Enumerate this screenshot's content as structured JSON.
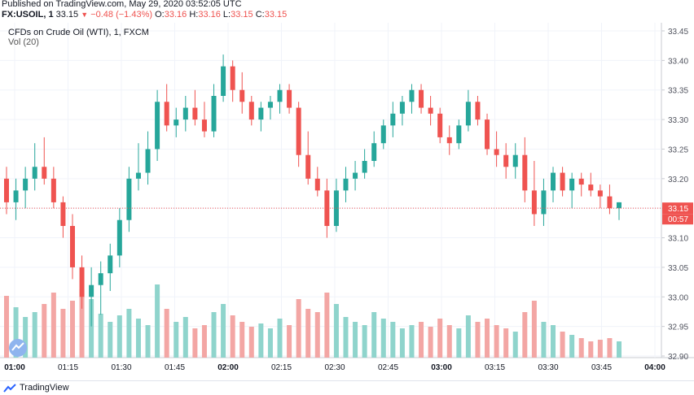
{
  "published": "Published on TradingView.com, May 29, 2020 03:52:05 UTC",
  "header": {
    "symbol": "FX:USOIL, 1",
    "last": "33.15",
    "change_arrow": "▼",
    "change": "−0.48 (−1.43%)",
    "o_label": "O:",
    "o": "33.16",
    "h_label": "H:",
    "h": "33.16",
    "l_label": "L:",
    "l": "33.15",
    "c_label": "C:",
    "c": "33.15"
  },
  "legend": {
    "title": "CFDs on Crude Oil (WTI), 1, FXCM",
    "volume": "Vol (20)"
  },
  "price_label": "33.15",
  "countdown": "00:57",
  "footer": {
    "brand": "TradingView"
  },
  "colors": {
    "up": "#26a69a",
    "down": "#ef5350",
    "vol_up": "#8fd4cc",
    "vol_down": "#f3a6a4",
    "price_line": "#ef5350"
  },
  "chart_data": {
    "type": "candlestick",
    "ylim": [
      32.9,
      33.45
    ],
    "y_ticks": [
      "33.45",
      "33.40",
      "33.35",
      "33.30",
      "33.25",
      "33.20",
      "33.15",
      "33.10",
      "33.05",
      "33.00",
      "32.95",
      "32.90"
    ],
    "x_ticks": [
      "01:00",
      "01:15",
      "01:30",
      "01:45",
      "02:00",
      "02:15",
      "02:30",
      "02:45",
      "03:00",
      "03:15",
      "03:30",
      "03:45",
      "04:00"
    ],
    "candles": [
      {
        "o": 33.2,
        "h": 33.22,
        "l": 33.14,
        "c": 33.16,
        "v": 0.38
      },
      {
        "o": 33.16,
        "h": 33.2,
        "l": 33.13,
        "c": 33.18,
        "v": 0.31
      },
      {
        "o": 33.18,
        "h": 33.22,
        "l": 33.15,
        "c": 33.2,
        "v": 0.25
      },
      {
        "o": 33.2,
        "h": 33.26,
        "l": 33.18,
        "c": 33.22,
        "v": 0.28
      },
      {
        "o": 33.22,
        "h": 33.27,
        "l": 33.19,
        "c": 33.2,
        "v": 0.33
      },
      {
        "o": 33.2,
        "h": 33.22,
        "l": 33.15,
        "c": 33.16,
        "v": 0.4
      },
      {
        "o": 33.16,
        "h": 33.17,
        "l": 33.1,
        "c": 33.12,
        "v": 0.3
      },
      {
        "o": 33.12,
        "h": 33.14,
        "l": 33.03,
        "c": 33.05,
        "v": 0.35
      },
      {
        "o": 33.05,
        "h": 33.07,
        "l": 32.98,
        "c": 33.0,
        "v": 0.42
      },
      {
        "o": 33.0,
        "h": 33.05,
        "l": 32.95,
        "c": 33.02,
        "v": 0.36
      },
      {
        "o": 33.02,
        "h": 33.06,
        "l": 32.97,
        "c": 33.04,
        "v": 0.27
      },
      {
        "o": 33.04,
        "h": 33.09,
        "l": 33.01,
        "c": 33.07,
        "v": 0.22
      },
      {
        "o": 33.07,
        "h": 33.15,
        "l": 33.05,
        "c": 33.13,
        "v": 0.26
      },
      {
        "o": 33.13,
        "h": 33.22,
        "l": 33.11,
        "c": 33.2,
        "v": 0.3
      },
      {
        "o": 33.2,
        "h": 33.26,
        "l": 33.18,
        "c": 33.21,
        "v": 0.24
      },
      {
        "o": 33.21,
        "h": 33.28,
        "l": 33.19,
        "c": 33.25,
        "v": 0.2
      },
      {
        "o": 33.25,
        "h": 33.35,
        "l": 33.23,
        "c": 33.33,
        "v": 0.45
      },
      {
        "o": 33.33,
        "h": 33.36,
        "l": 33.28,
        "c": 33.29,
        "v": 0.3
      },
      {
        "o": 33.29,
        "h": 33.32,
        "l": 33.27,
        "c": 33.3,
        "v": 0.22
      },
      {
        "o": 33.3,
        "h": 33.34,
        "l": 33.28,
        "c": 33.32,
        "v": 0.25
      },
      {
        "o": 33.32,
        "h": 33.35,
        "l": 33.29,
        "c": 33.3,
        "v": 0.18
      },
      {
        "o": 33.3,
        "h": 33.33,
        "l": 33.27,
        "c": 33.28,
        "v": 0.2
      },
      {
        "o": 33.28,
        "h": 33.36,
        "l": 33.27,
        "c": 33.34,
        "v": 0.28
      },
      {
        "o": 33.34,
        "h": 33.41,
        "l": 33.33,
        "c": 33.39,
        "v": 0.33
      },
      {
        "o": 33.39,
        "h": 33.4,
        "l": 33.33,
        "c": 33.35,
        "v": 0.26
      },
      {
        "o": 33.35,
        "h": 33.38,
        "l": 33.31,
        "c": 33.33,
        "v": 0.22
      },
      {
        "o": 33.33,
        "h": 33.34,
        "l": 33.29,
        "c": 33.3,
        "v": 0.19
      },
      {
        "o": 33.3,
        "h": 33.33,
        "l": 33.28,
        "c": 33.32,
        "v": 0.21
      },
      {
        "o": 33.32,
        "h": 33.34,
        "l": 33.3,
        "c": 33.33,
        "v": 0.18
      },
      {
        "o": 33.33,
        "h": 33.36,
        "l": 33.31,
        "c": 33.35,
        "v": 0.24
      },
      {
        "o": 33.35,
        "h": 33.36,
        "l": 33.31,
        "c": 33.32,
        "v": 0.2
      },
      {
        "o": 33.32,
        "h": 33.33,
        "l": 33.22,
        "c": 33.24,
        "v": 0.36
      },
      {
        "o": 33.24,
        "h": 33.28,
        "l": 33.19,
        "c": 33.2,
        "v": 0.3
      },
      {
        "o": 33.2,
        "h": 33.22,
        "l": 33.17,
        "c": 33.18,
        "v": 0.28
      },
      {
        "o": 33.18,
        "h": 33.2,
        "l": 33.1,
        "c": 33.12,
        "v": 0.4
      },
      {
        "o": 33.12,
        "h": 33.2,
        "l": 33.11,
        "c": 33.18,
        "v": 0.33
      },
      {
        "o": 33.18,
        "h": 33.22,
        "l": 33.16,
        "c": 33.2,
        "v": 0.25
      },
      {
        "o": 33.2,
        "h": 33.23,
        "l": 33.18,
        "c": 33.21,
        "v": 0.22
      },
      {
        "o": 33.21,
        "h": 33.25,
        "l": 33.2,
        "c": 33.23,
        "v": 0.2
      },
      {
        "o": 33.23,
        "h": 33.28,
        "l": 33.22,
        "c": 33.26,
        "v": 0.28
      },
      {
        "o": 33.26,
        "h": 33.3,
        "l": 33.25,
        "c": 33.29,
        "v": 0.24
      },
      {
        "o": 33.29,
        "h": 33.33,
        "l": 33.27,
        "c": 33.31,
        "v": 0.22
      },
      {
        "o": 33.31,
        "h": 33.34,
        "l": 33.29,
        "c": 33.33,
        "v": 0.18
      },
      {
        "o": 33.33,
        "h": 33.36,
        "l": 33.31,
        "c": 33.35,
        "v": 0.2
      },
      {
        "o": 33.35,
        "h": 33.36,
        "l": 33.31,
        "c": 33.32,
        "v": 0.22
      },
      {
        "o": 33.32,
        "h": 33.34,
        "l": 33.29,
        "c": 33.31,
        "v": 0.19
      },
      {
        "o": 33.31,
        "h": 33.32,
        "l": 33.26,
        "c": 33.27,
        "v": 0.24
      },
      {
        "o": 33.27,
        "h": 33.29,
        "l": 33.24,
        "c": 33.26,
        "v": 0.2
      },
      {
        "o": 33.26,
        "h": 33.3,
        "l": 33.25,
        "c": 33.29,
        "v": 0.18
      },
      {
        "o": 33.29,
        "h": 33.35,
        "l": 33.28,
        "c": 33.33,
        "v": 0.26
      },
      {
        "o": 33.33,
        "h": 33.34,
        "l": 33.29,
        "c": 33.3,
        "v": 0.22
      },
      {
        "o": 33.3,
        "h": 33.31,
        "l": 33.24,
        "c": 33.25,
        "v": 0.24
      },
      {
        "o": 33.25,
        "h": 33.28,
        "l": 33.22,
        "c": 33.24,
        "v": 0.2
      },
      {
        "o": 33.24,
        "h": 33.26,
        "l": 33.2,
        "c": 33.22,
        "v": 0.18
      },
      {
        "o": 33.22,
        "h": 33.26,
        "l": 33.2,
        "c": 33.24,
        "v": 0.16
      },
      {
        "o": 33.24,
        "h": 33.27,
        "l": 33.16,
        "c": 33.18,
        "v": 0.28
      },
      {
        "o": 33.18,
        "h": 33.23,
        "l": 33.12,
        "c": 33.14,
        "v": 0.35
      },
      {
        "o": 33.14,
        "h": 33.2,
        "l": 33.12,
        "c": 33.18,
        "v": 0.22
      },
      {
        "o": 33.18,
        "h": 33.22,
        "l": 33.16,
        "c": 33.21,
        "v": 0.2
      },
      {
        "o": 33.21,
        "h": 33.22,
        "l": 33.17,
        "c": 33.18,
        "v": 0.16
      },
      {
        "o": 33.18,
        "h": 33.21,
        "l": 33.15,
        "c": 33.2,
        "v": 0.14
      },
      {
        "o": 33.2,
        "h": 33.21,
        "l": 33.17,
        "c": 33.19,
        "v": 0.12
      },
      {
        "o": 33.19,
        "h": 33.21,
        "l": 33.17,
        "c": 33.18,
        "v": 0.1
      },
      {
        "o": 33.18,
        "h": 33.19,
        "l": 33.15,
        "c": 33.17,
        "v": 0.11
      },
      {
        "o": 33.17,
        "h": 33.19,
        "l": 33.14,
        "c": 33.15,
        "v": 0.12
      },
      {
        "o": 33.15,
        "h": 33.16,
        "l": 33.13,
        "c": 33.16,
        "v": 0.1
      }
    ]
  }
}
